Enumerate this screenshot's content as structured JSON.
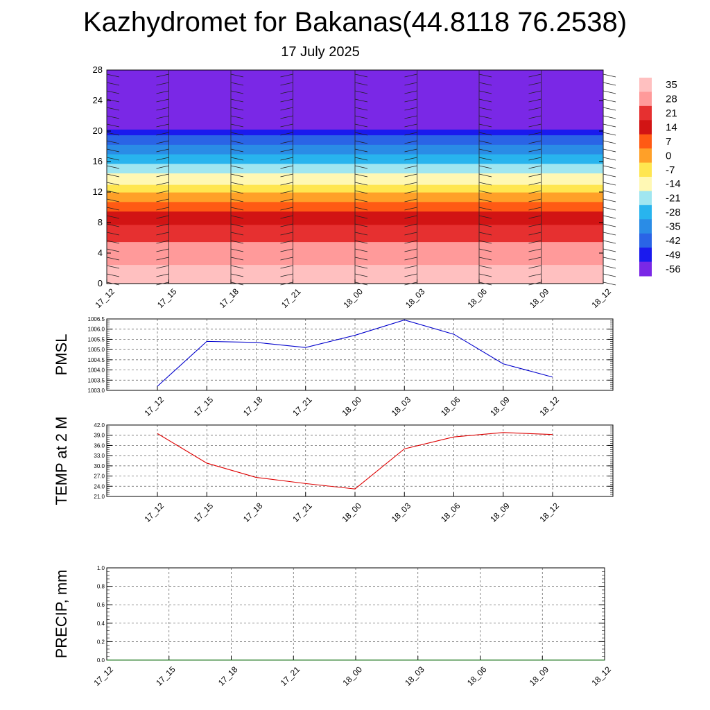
{
  "title": "Kazhydromet for Bakanas(44.8118 76.2538)",
  "subtitle": "17 July 2025",
  "colorbar": {
    "labels": [
      "35",
      "28",
      "21",
      "14",
      "7",
      "0",
      "-7",
      "-14",
      "-21",
      "-28",
      "-35",
      "-42",
      "-49",
      "-56"
    ],
    "colors": [
      "#ffc0c0",
      "#ff9a9a",
      "#e63030",
      "#d21414",
      "#ff5a14",
      "#ffa028",
      "#ffe650",
      "#fff8b4",
      "#a0e6f0",
      "#28b4ee",
      "#2a8ce6",
      "#2a64e6",
      "#1a1aee",
      "#7a28e6"
    ]
  },
  "chart_data": [
    {
      "type": "heatmap",
      "ylabel": "",
      "x_ticks": [
        "17_12",
        "17_15",
        "17_18",
        "17_21",
        "18_00",
        "18_03",
        "18_06",
        "18_09",
        "18_12"
      ],
      "y_ticks": [
        0,
        4,
        8,
        12,
        16,
        20,
        24,
        28
      ],
      "ylim": [
        0,
        28
      ],
      "colorbar_range": [
        -56,
        35
      ],
      "note_levels": [
        {
          "y": 0,
          "value": 33
        },
        {
          "y": 4,
          "value": 26
        },
        {
          "y": 6,
          "value": 21
        },
        {
          "y": 9,
          "value": 12
        },
        {
          "y": 13,
          "value": -10
        },
        {
          "y": 16,
          "value": -25
        },
        {
          "y": 19,
          "value": -40
        },
        {
          "y": 21,
          "value": -56
        },
        {
          "y": 25,
          "value": -60
        },
        {
          "y": 28,
          "value": -60
        }
      ]
    },
    {
      "type": "line",
      "ylabel": "PMSL",
      "x_ticks": [
        "17_12",
        "17_15",
        "17_18",
        "17_21",
        "18_00",
        "18_03",
        "18_06",
        "18_09",
        "18_12"
      ],
      "y_ticks": [
        "1003.0",
        "1003.5",
        "1004.0",
        "1004.5",
        "1005.0",
        "1005.5",
        "1006.0",
        "1006.5"
      ],
      "ylim": [
        1003.0,
        1006.5
      ],
      "series": [
        {
          "color": "#0000cc",
          "values": [
            1003.2,
            1005.4,
            1005.35,
            1005.1,
            1005.7,
            1006.45,
            1005.75,
            1004.3,
            1003.65
          ]
        }
      ]
    },
    {
      "type": "line",
      "ylabel": "TEMP at 2 M",
      "x_ticks": [
        "17_12",
        "17_15",
        "17_18",
        "17_21",
        "18_00",
        "18_03",
        "18_06",
        "18_09",
        "18_12"
      ],
      "y_ticks": [
        "21.0",
        "24.0",
        "27.0",
        "30.0",
        "33.0",
        "36.0",
        "39.0",
        "42.0"
      ],
      "ylim": [
        21.0,
        42.0
      ],
      "series": [
        {
          "color": "#dd0000",
          "values": [
            39.5,
            30.8,
            26.6,
            24.8,
            23.2,
            35.0,
            38.5,
            39.8,
            39.2
          ]
        }
      ]
    },
    {
      "type": "line",
      "ylabel": "PRECIP, mm",
      "x_ticks": [
        "17_12",
        "17_15",
        "17_18",
        "17_21",
        "18_00",
        "18_03",
        "18_06",
        "18_09",
        "18_12"
      ],
      "y_ticks": [
        "0.0",
        "0.2",
        "0.4",
        "0.6",
        "0.8",
        "1.0"
      ],
      "ylim": [
        0.0,
        1.0
      ],
      "series": [
        {
          "color": "#006400",
          "values": [
            0,
            0,
            0,
            0,
            0,
            0,
            0,
            0,
            0
          ]
        }
      ]
    }
  ]
}
